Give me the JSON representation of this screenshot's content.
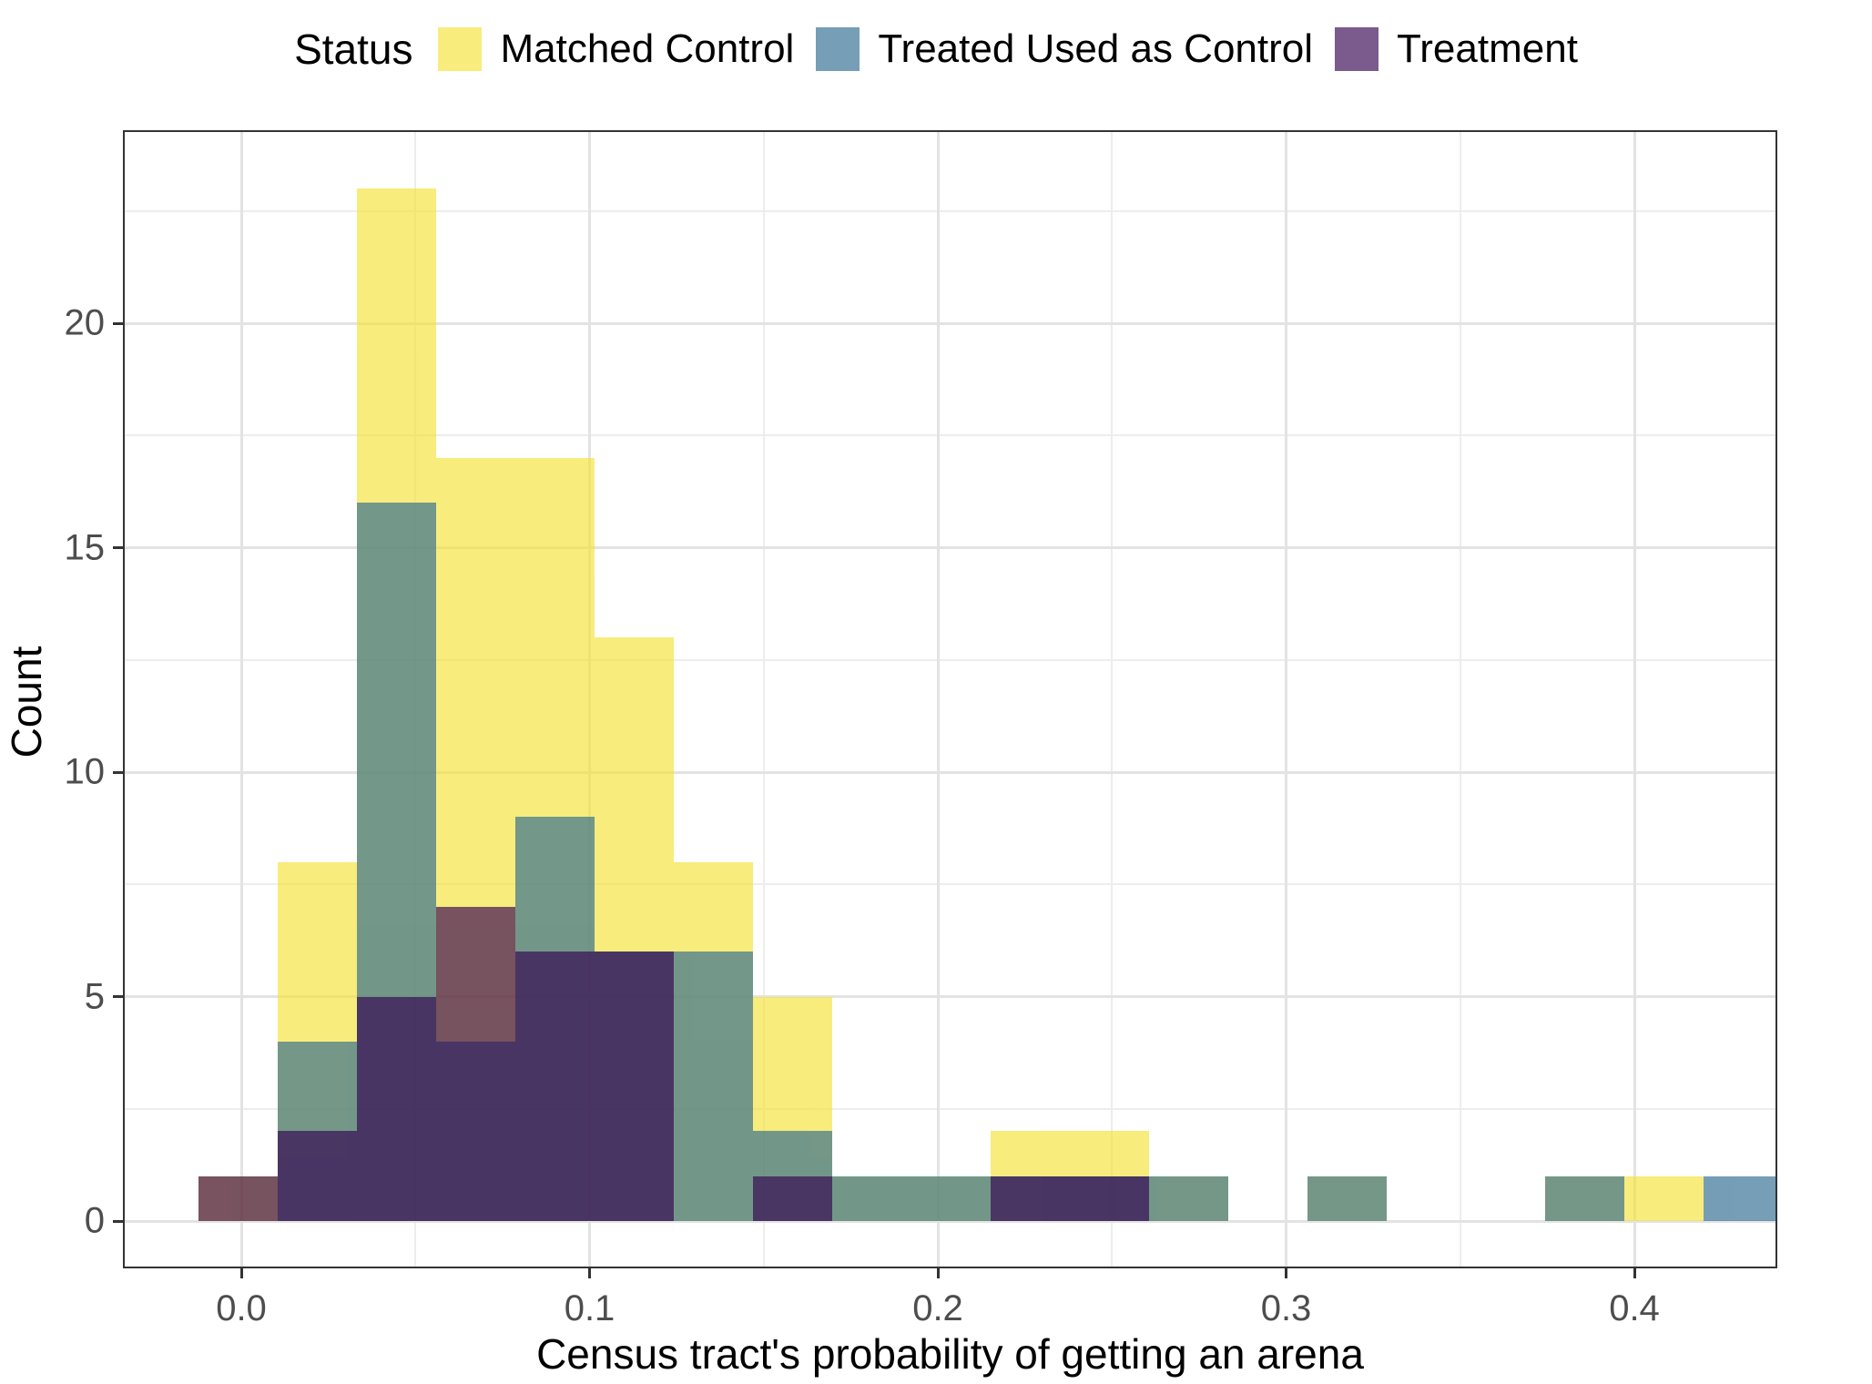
{
  "legend": {
    "title": "Status",
    "items": [
      {
        "label": "Matched Control",
        "color": "#f4e237"
      },
      {
        "label": "Treated Used as Control",
        "color": "#2c6a8f"
      },
      {
        "label": "Treatment",
        "color": "#340150"
      }
    ]
  },
  "axes": {
    "x": {
      "label": "Census tract's probability of getting an arena",
      "ticks": [
        "0.0",
        "0.1",
        "0.2",
        "0.3",
        "0.4"
      ],
      "tick_values": [
        0,
        0.1,
        0.2,
        0.3,
        0.4
      ]
    },
    "y": {
      "label": "Count",
      "ticks": [
        "0",
        "5",
        "10",
        "15",
        "20"
      ],
      "tick_values": [
        0,
        5,
        10,
        15,
        20
      ]
    }
  },
  "chart_data": {
    "type": "bar",
    "subtype": "overlaid-histogram",
    "position": "identity",
    "opacity": 0.65,
    "bin_width": 0.0228,
    "bin_start": -0.0114,
    "bin_centers": [
      0.0,
      0.023,
      0.046,
      0.068,
      0.091,
      0.114,
      0.137,
      0.159,
      0.182,
      0.205,
      0.228,
      0.25,
      0.273,
      0.296,
      0.319,
      0.341,
      0.364,
      0.387,
      0.41,
      0.432
    ],
    "series": [
      {
        "name": "Matched Control",
        "color": "#f4e237",
        "counts": [
          1,
          8,
          23,
          17,
          17,
          13,
          8,
          5,
          1,
          1,
          2,
          2,
          1,
          0,
          1,
          0,
          0,
          1,
          1,
          0
        ]
      },
      {
        "name": "Treated Used as Control",
        "color": "#2c6a8f",
        "counts": [
          0,
          4,
          16,
          4,
          9,
          6,
          6,
          2,
          1,
          1,
          1,
          1,
          1,
          0,
          1,
          0,
          0,
          1,
          0,
          1
        ]
      },
      {
        "name": "Treatment",
        "color": "#340150",
        "counts": [
          1,
          2,
          5,
          7,
          6,
          6,
          0,
          1,
          0,
          0,
          1,
          1,
          0,
          0,
          0,
          0,
          0,
          0,
          0,
          0
        ]
      }
    ],
    "title": "",
    "xlabel": "Census tract's probability of getting an arena",
    "ylabel": "Count",
    "xlim": [
      -0.034,
      0.439
    ],
    "ylim": [
      0,
      23
    ],
    "grid": true,
    "legend_position": "top"
  }
}
